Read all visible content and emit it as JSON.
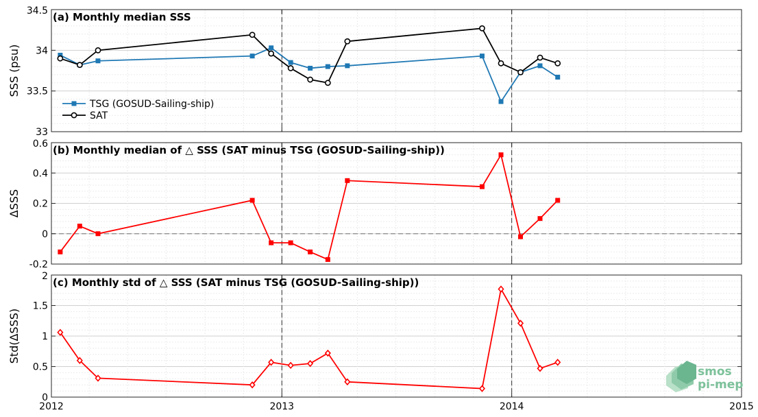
{
  "figure": {
    "x_ticks": [
      "2012",
      "2013",
      "2014",
      "2015"
    ],
    "logo": {
      "line1": "smos",
      "line2": "pi-mep",
      "color": "#7cc19a",
      "dark": "#5aa57e"
    }
  },
  "chart_data": [
    {
      "type": "line",
      "panel": "a",
      "title": "(a) Monthly median SSS",
      "ylabel": "SSS (psu)",
      "xlim": [
        "2012-01-01",
        "2015-01-01"
      ],
      "ylim": [
        33,
        34.5
      ],
      "yticks": [
        "33",
        "33.5",
        "34",
        "34.5"
      ],
      "grid": true,
      "legend": "left",
      "series": [
        {
          "name": "TSG (GOSUD-Sailing-ship)",
          "color": "#1f78b4",
          "marker": "square",
          "x": [
            "2012-01-15",
            "2012-02-15",
            "2012-03-15",
            "2012-11-15",
            "2012-12-15",
            "2013-01-15",
            "2013-02-15",
            "2013-03-15",
            "2013-04-15",
            "2013-11-15",
            "2013-12-15",
            "2014-01-15",
            "2014-02-15",
            "2014-03-15"
          ],
          "values": [
            33.94,
            33.82,
            33.87,
            33.93,
            34.03,
            33.85,
            33.78,
            33.8,
            33.81,
            33.93,
            33.37,
            33.73,
            33.81,
            33.67
          ]
        },
        {
          "name": "SAT",
          "color": "#000000",
          "marker": "circle",
          "x": [
            "2012-01-15",
            "2012-02-15",
            "2012-03-15",
            "2012-11-15",
            "2012-12-15",
            "2013-01-15",
            "2013-02-15",
            "2013-03-15",
            "2013-04-15",
            "2013-11-15",
            "2013-12-15",
            "2014-01-15",
            "2014-02-15",
            "2014-03-15"
          ],
          "values": [
            33.9,
            33.82,
            34.0,
            34.19,
            33.96,
            33.78,
            33.64,
            33.6,
            34.11,
            34.27,
            33.84,
            33.73,
            33.91,
            33.84
          ]
        }
      ],
      "vlines": [
        "2013-01-01",
        "2014-01-01"
      ]
    },
    {
      "type": "line",
      "panel": "b",
      "title": "(b) Monthly median of △ SSS (SAT minus TSG (GOSUD-Sailing-ship))",
      "ylabel": "ΔSSS",
      "xlim": [
        "2012-01-01",
        "2015-01-01"
      ],
      "ylim": [
        -0.2,
        0.6
      ],
      "yticks": [
        "-0.2",
        "0",
        "0.2",
        "0.4",
        "0.6"
      ],
      "grid": true,
      "hline": 0,
      "series": [
        {
          "color": "#ff0000",
          "marker": "square",
          "x": [
            "2012-01-15",
            "2012-02-15",
            "2012-03-15",
            "2012-11-15",
            "2012-12-15",
            "2013-01-15",
            "2013-02-15",
            "2013-03-15",
            "2013-04-15",
            "2013-11-15",
            "2013-12-15",
            "2014-01-15",
            "2014-02-15",
            "2014-03-15"
          ],
          "values": [
            -0.12,
            0.05,
            0.0,
            0.22,
            -0.06,
            -0.06,
            -0.12,
            -0.17,
            0.35,
            0.31,
            0.52,
            -0.02,
            0.1,
            0.22
          ]
        }
      ],
      "vlines": [
        "2013-01-01",
        "2014-01-01"
      ]
    },
    {
      "type": "line",
      "panel": "c",
      "title": "(c) Monthly std of △ SSS (SAT minus TSG (GOSUD-Sailing-ship))",
      "ylabel": "Std(ΔSSS)",
      "xlim": [
        "2012-01-01",
        "2015-01-01"
      ],
      "ylim": [
        0,
        2
      ],
      "yticks": [
        "0",
        "0.5",
        "1",
        "1.5",
        "2"
      ],
      "grid": true,
      "series": [
        {
          "color": "#ff0000",
          "marker": "diamond",
          "x": [
            "2012-01-15",
            "2012-02-15",
            "2012-03-15",
            "2012-11-15",
            "2012-12-15",
            "2013-01-15",
            "2013-02-15",
            "2013-03-15",
            "2013-04-15",
            "2013-11-15",
            "2013-12-15",
            "2014-01-15",
            "2014-02-15",
            "2014-03-15"
          ],
          "values": [
            1.06,
            0.6,
            0.31,
            0.2,
            0.57,
            0.52,
            0.55,
            0.72,
            0.25,
            0.14,
            1.77,
            1.21,
            0.47,
            0.57
          ]
        }
      ],
      "vlines": [
        "2013-01-01",
        "2014-01-01"
      ]
    }
  ]
}
